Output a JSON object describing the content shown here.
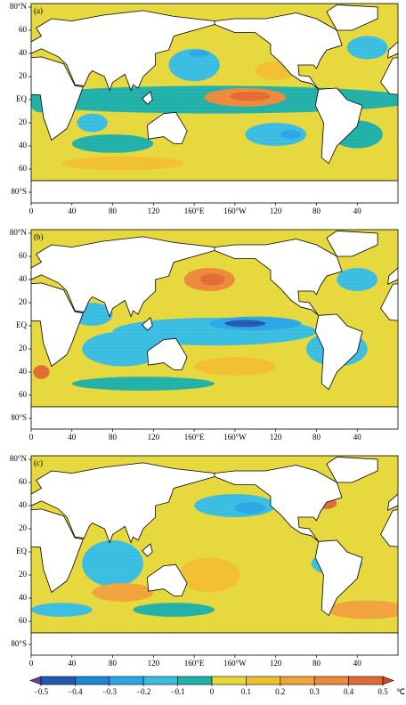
{
  "panels": [
    {
      "label": "(a)"
    },
    {
      "label": "(b)"
    },
    {
      "label": "(c)"
    }
  ],
  "lat_labels": [
    "80°N",
    "60",
    "40",
    "20",
    "EQ",
    "20",
    "40",
    "60",
    "80°S"
  ],
  "lon_labels": [
    "0",
    "40",
    "80",
    "120",
    "160°E",
    "160°W",
    "120",
    "80",
    "40"
  ],
  "colorbar": {
    "ticks": [
      {
        "value": -0.5,
        "label": "−0.5"
      },
      {
        "value": -0.4,
        "label": "−0.4"
      },
      {
        "value": -0.3,
        "label": "−0.3"
      },
      {
        "value": -0.2,
        "label": "−0.2"
      },
      {
        "value": -0.1,
        "label": "−0.1"
      },
      0,
      0.1,
      0.2,
      0.3,
      0.4,
      0.5
    ],
    "unit": "℃",
    "colors": [
      "#6a3fa0",
      "#2357b0",
      "#1a86d6",
      "#2aa6e6",
      "#38bde0",
      "#1fb0a8",
      "#e6d83a",
      "#f2bf2e",
      "#f2a23a",
      "#ec8a3a",
      "#e26a30",
      "#d8452a"
    ]
  }
}
